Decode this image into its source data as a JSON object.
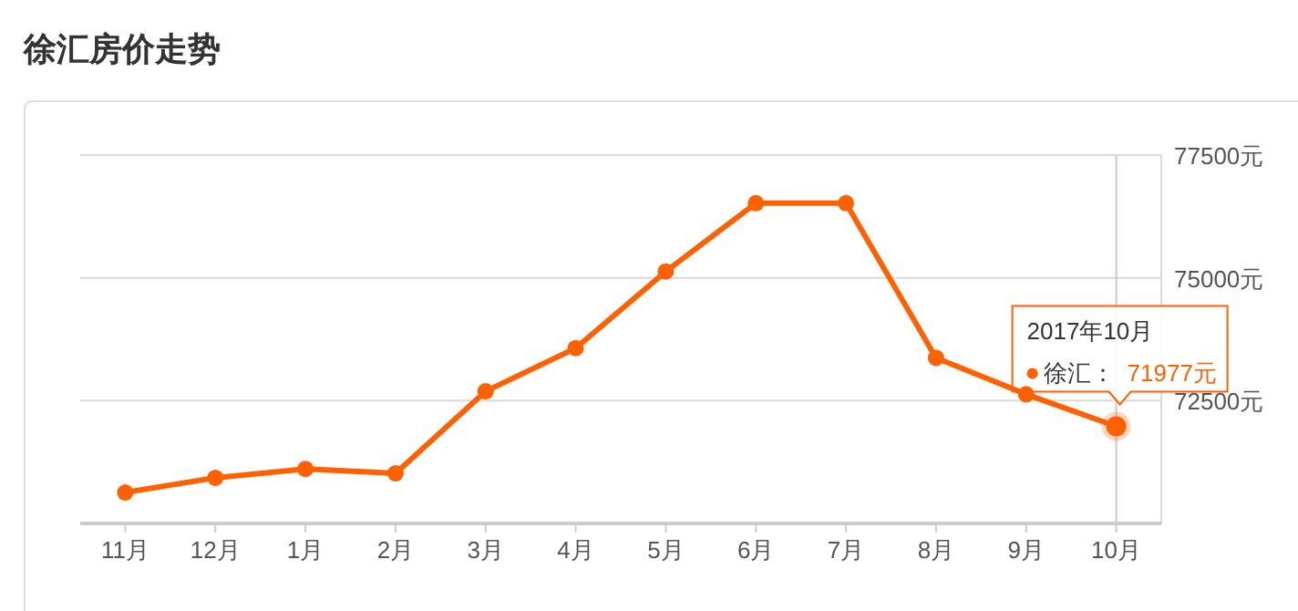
{
  "chart_data": {
    "type": "line",
    "title": "徐汇房价走势",
    "categories": [
      "11月",
      "12月",
      "1月",
      "2月",
      "3月",
      "4月",
      "5月",
      "6月",
      "7月",
      "8月",
      "9月",
      "10月"
    ],
    "series": [
      {
        "name": "徐汇：",
        "color": "#ff6000",
        "values": [
          70630,
          70930,
          71110,
          71020,
          72690,
          73570,
          75130,
          76520,
          76520,
          73370,
          72630,
          71977
        ],
        "value_labels": [
          null,
          null,
          null,
          null,
          null,
          null,
          null,
          null,
          null,
          null,
          null,
          "71977元"
        ]
      }
    ],
    "ylim": [
      70000,
      77500
    ],
    "yticks": [
      {
        "value": 72500,
        "label": "72500元"
      },
      {
        "value": 75000,
        "label": "75000元"
      },
      {
        "value": 77500,
        "label": "77500元"
      }
    ],
    "grid": "y",
    "marker": "circle",
    "line_style": "solid",
    "ref_lines": [
      {
        "axis": "x",
        "value": "10月",
        "color": "#c8c8c8"
      }
    ],
    "annotations": [
      "2017年10月"
    ]
  }
}
